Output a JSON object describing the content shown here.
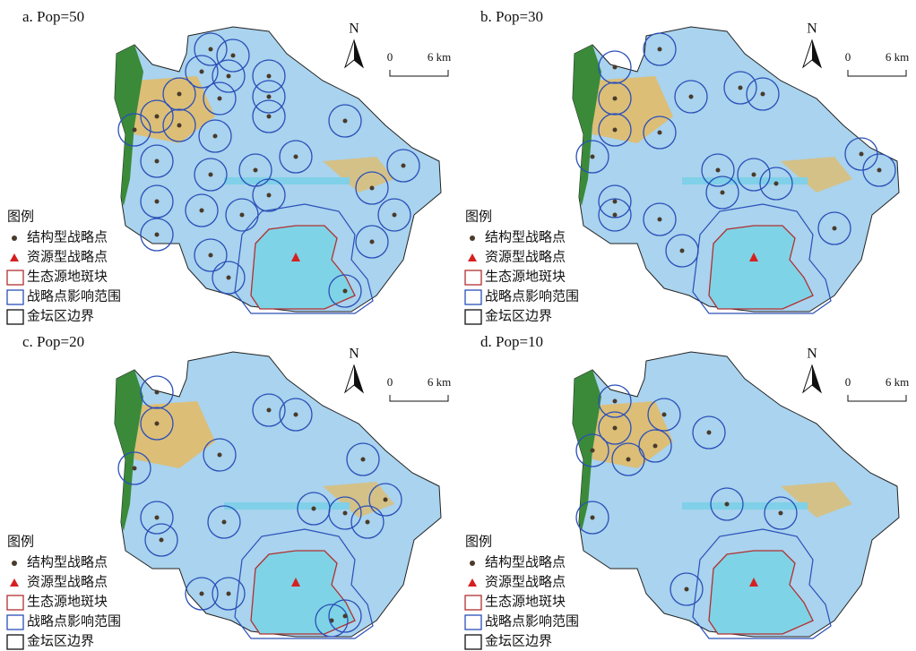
{
  "panels": [
    {
      "title": "a. Pop=50",
      "north": "N",
      "scale": {
        "start": "0",
        "end": "6 km"
      },
      "legend": {
        "title": "图例",
        "items": [
          "结构型战略点",
          "资源型战略点",
          "生态源地斑块",
          "战略点影响范围",
          "金坛区边界"
        ]
      }
    },
    {
      "title": "b. Pop=30",
      "north": "N",
      "scale": {
        "start": "0",
        "end": "6 km"
      },
      "legend": {
        "title": "图例",
        "items": [
          "结构型战略点",
          "资源型战略点",
          "生态源地斑块",
          "战略点影响范围",
          "金坛区边界"
        ]
      }
    },
    {
      "title": "c. Pop=20",
      "north": "N",
      "scale": {
        "start": "0",
        "end": "6 km"
      },
      "legend": {
        "title": "图例",
        "items": [
          "结构型战略点",
          "资源型战略点",
          "生态源地斑块",
          "战略点影响范围",
          "金坛区边界"
        ]
      }
    },
    {
      "title": "d. Pop=10",
      "north": "N",
      "scale": {
        "start": "0",
        "end": "6 km"
      },
      "legend": {
        "title": "图例",
        "items": [
          "结构型战略点",
          "资源型战略点",
          "生态源地斑块",
          "战略点影响范围",
          "金坛区边界"
        ]
      }
    }
  ]
}
